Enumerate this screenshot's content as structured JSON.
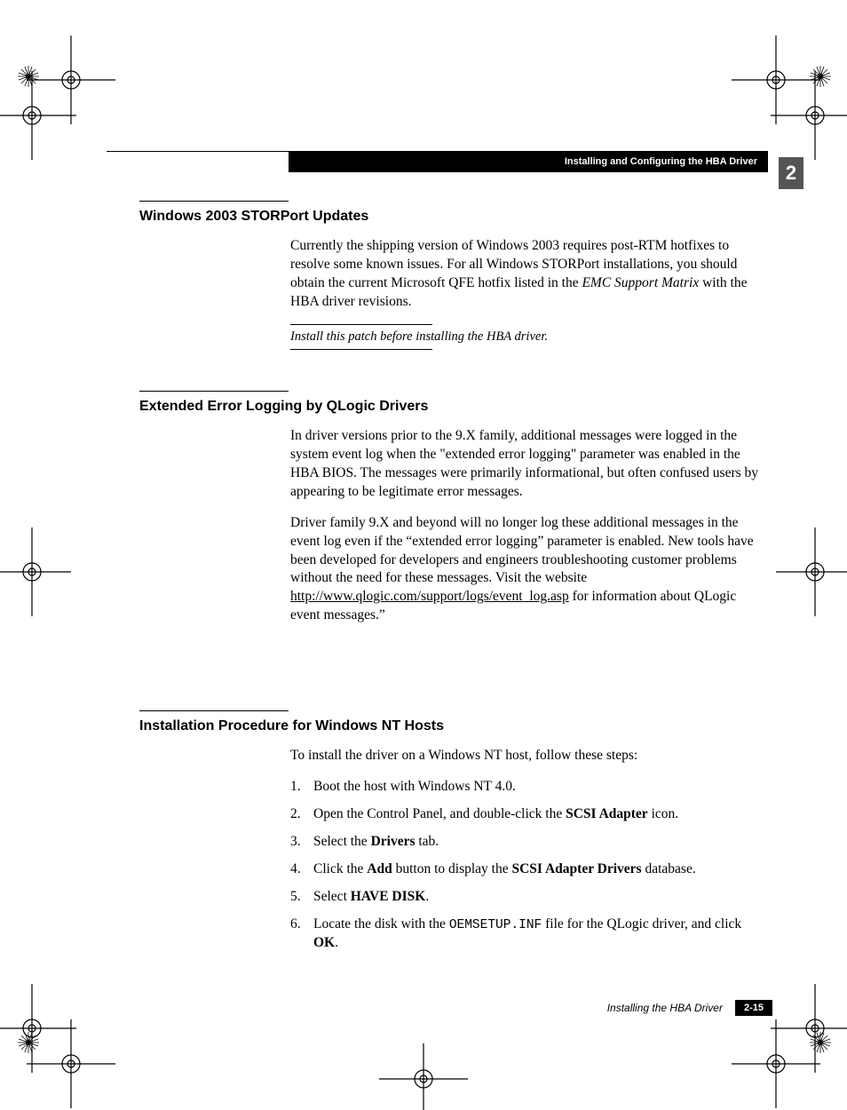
{
  "header": {
    "chapter_title": "Installing and Configuring the HBA Driver",
    "chapter_number": "2"
  },
  "sections": [
    {
      "title": "Windows 2003 STORPort Updates",
      "paragraphs": [
        {
          "runs": [
            {
              "t": "Currently the shipping version of Windows 2003 requires post-RTM hotfixes to resolve some known issues. For all Windows STORPort installations, you should obtain the current Microsoft QFE hotfix listed in the "
            },
            {
              "t": "EMC Support Matrix",
              "style": "italic"
            },
            {
              "t": " with the HBA driver revisions."
            }
          ]
        }
      ],
      "note": "Install this patch before installing the HBA driver."
    },
    {
      "title": "Extended Error Logging by QLogic Drivers",
      "paragraphs": [
        {
          "runs": [
            {
              "t": "In driver versions prior to the 9.X family, additional messages were logged in the system event log when the \"extended error logging\" parameter was enabled in the HBA BIOS.  The messages were primarily informational, but often confused users by appearing to be legitimate error messages."
            }
          ]
        },
        {
          "runs": [
            {
              "t": "Driver family 9.X and beyond will no longer log these additional messages in the event log even if the “extended error logging” parameter is enabled.  New tools have been developed for developers and engineers troubleshooting customer problems without the need for these messages.  Visit the website "
            },
            {
              "t": "http://www.qlogic.com/support/logs/event_log.asp",
              "style": "link"
            },
            {
              "t": " for information about QLogic event messages.”"
            }
          ]
        }
      ]
    },
    {
      "title": "Installation Procedure for Windows NT Hosts",
      "intro": "To install the driver on a Windows NT host, follow these steps:",
      "steps": [
        [
          {
            "t": "Boot the host with Windows NT 4.0."
          }
        ],
        [
          {
            "t": "Open the Control Panel, and double-click the "
          },
          {
            "t": "SCSI Adapter",
            "style": "bold"
          },
          {
            "t": " icon."
          }
        ],
        [
          {
            "t": "Select the "
          },
          {
            "t": "Drivers",
            "style": "bold"
          },
          {
            "t": "  tab."
          }
        ],
        [
          {
            "t": "Click the "
          },
          {
            "t": "Add",
            "style": "bold"
          },
          {
            "t": " button to display the "
          },
          {
            "t": "SCSI Adapter Drivers",
            "style": "bold"
          },
          {
            "t": " database."
          }
        ],
        [
          {
            "t": "Select  "
          },
          {
            "t": "HAVE DISK",
            "style": "bold"
          },
          {
            "t": "."
          }
        ],
        [
          {
            "t": "Locate the disk with the "
          },
          {
            "t": "OEMSETUP.INF",
            "style": "mono"
          },
          {
            "t": " file for the QLogic driver, and click "
          },
          {
            "t": "OK",
            "style": "bold"
          },
          {
            "t": "."
          }
        ]
      ]
    }
  ],
  "footer": {
    "title": "Installing the HBA Driver",
    "page": "2-15"
  },
  "layout": {
    "section_tops": [
      226,
      440,
      800
    ]
  }
}
